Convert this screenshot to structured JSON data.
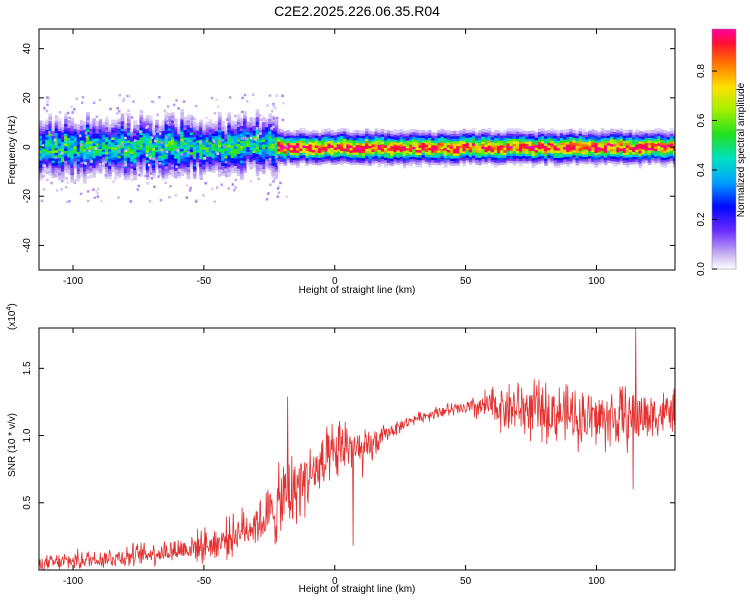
{
  "title": "C2E2.2025.226.06.35.R04",
  "chart_data": [
    {
      "type": "heatmap",
      "xlabel": "Height of straight line (km)",
      "ylabel": "Frequency (Hz)",
      "xlim": [
        -113,
        130
      ],
      "ylim": [
        -50,
        48
      ],
      "xticks": [
        -100,
        -50,
        0,
        50,
        100
      ],
      "xtick_labels": [
        "-100",
        "-50",
        "0",
        "50",
        "100"
      ],
      "yticks": [
        -40,
        -20,
        0,
        20,
        40
      ],
      "ytick_labels": [
        "-40",
        "-20",
        "0",
        "20",
        "40"
      ],
      "colorbar": {
        "label": "Normalized spectral amplitude",
        "range": [
          0,
          0.97
        ],
        "ticks": [
          0.0,
          0.2,
          0.4,
          0.6,
          0.8
        ],
        "tick_labels": [
          "0.0",
          "0.2",
          "0.4",
          "0.6",
          "0.8"
        ]
      },
      "band": {
        "center_freq_hz": 0,
        "segments": [
          {
            "x_range": [
              -113,
              -22
            ],
            "half_width_hz": 6,
            "peak_amplitude": 0.55,
            "note_spread_hz": [
              -10,
              10
            ]
          },
          {
            "x_range": [
              -22,
              130
            ],
            "half_width_hz": 4,
            "peak_amplitude": 0.95
          }
        ]
      }
    },
    {
      "type": "line",
      "xlabel": "Height of straight line (km)",
      "ylabel": "SNR (10 * v/v)",
      "multiplier_label": "(x10",
      "multiplier_exp": "4",
      "multiplier_close": ")",
      "xlim": [
        -113,
        130
      ],
      "ylim": [
        0,
        1.8
      ],
      "xticks": [
        -100,
        -50,
        0,
        50,
        100
      ],
      "xtick_labels": [
        "-100",
        "-50",
        "0",
        "50",
        "100"
      ],
      "yticks": [
        0.5,
        1.0,
        1.5
      ],
      "ytick_labels": [
        "0.5",
        "1.0",
        "1.5"
      ],
      "color": "#e33030",
      "trend": {
        "x": [
          -113,
          -100,
          -80,
          -60,
          -45,
          -35,
          -25,
          -18,
          -10,
          -5,
          0,
          5,
          10,
          20,
          30,
          40,
          50,
          60,
          70,
          80,
          90,
          100,
          110,
          120,
          130
        ],
        "y": [
          0.04,
          0.07,
          0.1,
          0.15,
          0.2,
          0.3,
          0.4,
          0.55,
          0.7,
          0.75,
          0.85,
          0.95,
          0.85,
          1.02,
          1.12,
          1.18,
          1.2,
          1.22,
          1.2,
          1.18,
          1.15,
          1.12,
          1.13,
          1.15,
          1.18
        ]
      },
      "noise_amplitude": {
        "x": [
          -113,
          -60,
          -30,
          -20,
          -10,
          0,
          10,
          20,
          30,
          40,
          50,
          60,
          70,
          90,
          110,
          130
        ],
        "y": [
          0.05,
          0.08,
          0.14,
          0.25,
          0.2,
          0.2,
          0.15,
          0.05,
          0.03,
          0.04,
          0.05,
          0.12,
          0.18,
          0.18,
          0.2,
          0.12
        ]
      },
      "notable_points": [
        {
          "x": -18,
          "y": 1.29
        },
        {
          "x": 7,
          "y": 0.18
        },
        {
          "x": 115,
          "y": 1.8
        },
        {
          "x": 114,
          "y": 0.6
        }
      ]
    }
  ]
}
